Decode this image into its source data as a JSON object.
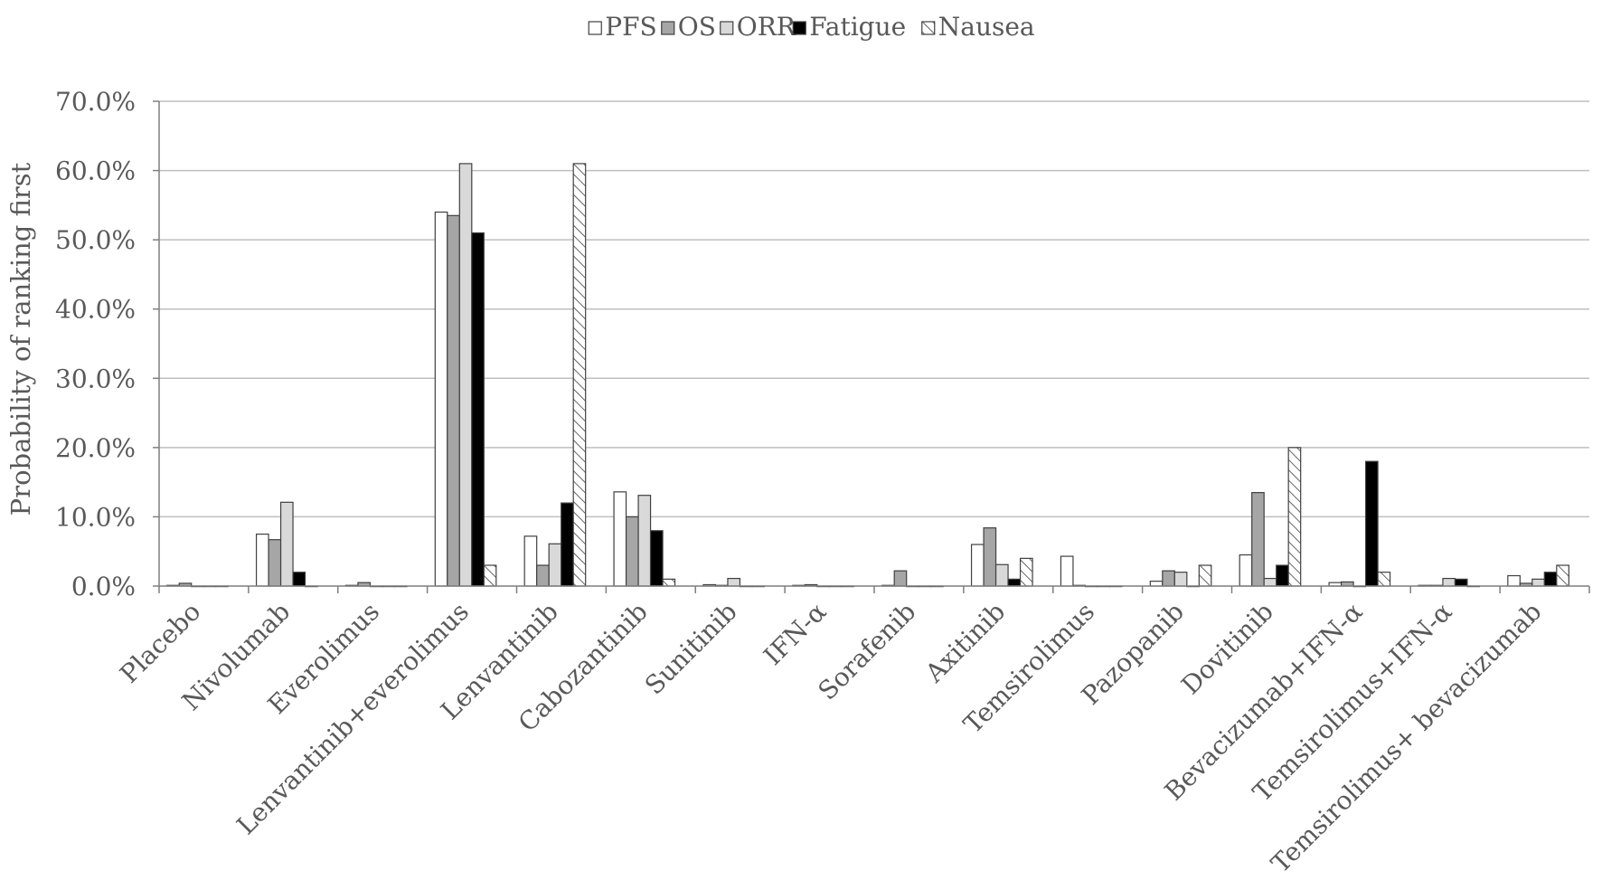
{
  "chart_data": {
    "type": "bar",
    "ylabel": "Probability of  ranking first",
    "ylim": [
      0,
      70
    ],
    "y_ticks": [
      "0.0%",
      "10.0%",
      "20.0%",
      "30.0%",
      "40.0%",
      "50.0%",
      "60.0%",
      "70.0%"
    ],
    "grid": true,
    "legend_position": "top-center",
    "categories": [
      "Placebo",
      "Nivolumab",
      "Everolimus",
      "Lenvantinib+everolimus",
      "Lenvantinib",
      "Cabozantinib",
      "Sunitinib",
      "IFN-α",
      "Sorafenib",
      "Axitinib",
      "Temsirolimus",
      "Pazopanib",
      "Dovitinib",
      "Bevacizumab+IFN-α",
      "Temsirolimus+IFN-α",
      "Temsirolimus+ bevacizumab"
    ],
    "series": [
      {
        "name": "PFS",
        "color": "#ffffff",
        "pattern": "none",
        "values": [
          0.1,
          7.5,
          0.1,
          54,
          7.2,
          13.6,
          0.2,
          0.1,
          0.1,
          6.0,
          4.3,
          0.7,
          4.5,
          0.5,
          0.1,
          1.5
        ]
      },
      {
        "name": "OS",
        "color": "#a6a6a6",
        "pattern": "none",
        "values": [
          0.4,
          6.7,
          0.5,
          53.5,
          3.0,
          10.0,
          0.1,
          0.2,
          2.2,
          8.4,
          0.1,
          2.2,
          13.5,
          0.6,
          0.1,
          0.4
        ]
      },
      {
        "name": "ORR",
        "color": "#d9d9d9",
        "pattern": "none",
        "values": [
          0.0,
          12.1,
          0.0,
          61,
          6.1,
          13.1,
          1.1,
          0.0,
          0.0,
          3.1,
          0.0,
          2.0,
          1.1,
          0.0,
          1.1,
          1.0
        ]
      },
      {
        "name": "Fatigue",
        "color": "#000000",
        "pattern": "none",
        "values": [
          0.0,
          2.0,
          0.0,
          51,
          12,
          8.0,
          0.0,
          0.0,
          0.0,
          1.0,
          0.0,
          0.0,
          3.0,
          18,
          1.0,
          2.0
        ]
      },
      {
        "name": "Nausea",
        "color": "#ffffff",
        "pattern": "diagonal-hatch",
        "values": [
          0.0,
          0.0,
          0.0,
          3.0,
          61,
          1.0,
          0.0,
          0.0,
          0.0,
          4.0,
          0.0,
          3.0,
          20,
          2.0,
          0.0,
          3.0
        ]
      }
    ]
  }
}
